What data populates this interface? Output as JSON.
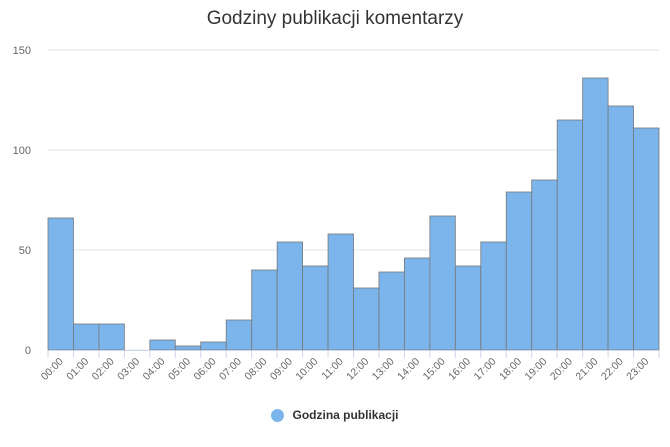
{
  "chart_data": {
    "type": "bar",
    "title": "Godziny publikacji komentarzy",
    "xlabel": "",
    "ylabel": "",
    "ylim": [
      0,
      150
    ],
    "yticks": [
      0,
      50,
      100,
      150
    ],
    "grid": true,
    "legend_position": "bottom",
    "categories": [
      "00:00",
      "01:00",
      "02:00",
      "03:00",
      "04:00",
      "05:00",
      "06:00",
      "07:00",
      "08:00",
      "09:00",
      "10:00",
      "11:00",
      "12:00",
      "13:00",
      "14:00",
      "15:00",
      "16:00",
      "17:00",
      "18:00",
      "19:00",
      "20:00",
      "21:00",
      "22:00",
      "23:00"
    ],
    "series": [
      {
        "name": "Godzina publikacji",
        "color": "#7cb5ec",
        "values": [
          66,
          13,
          13,
          0,
          5,
          2,
          4,
          15,
          40,
          54,
          42,
          58,
          31,
          39,
          46,
          67,
          42,
          54,
          79,
          85,
          115,
          136,
          122,
          111
        ]
      }
    ]
  }
}
